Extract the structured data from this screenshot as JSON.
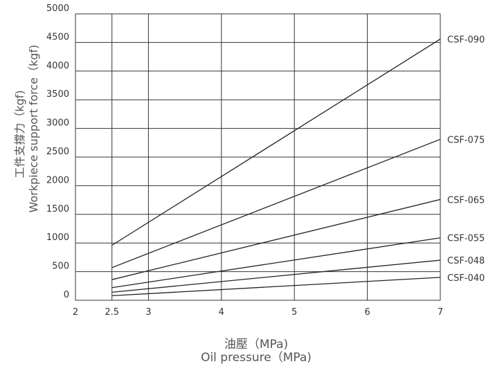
{
  "chart_data": {
    "type": "line",
    "xlabel_lines": [
      "油壓（MPa)",
      "Oil pressure（MPa)"
    ],
    "ylabel_lines": [
      "工件支撐力（kgf)",
      "Workpiece support force（kgf)"
    ],
    "xlim": [
      2,
      7
    ],
    "ylim": [
      0,
      5000
    ],
    "xticks": [
      2,
      2.5,
      3,
      4,
      5,
      6,
      7
    ],
    "xtick_labels": [
      "2",
      "2.5",
      "3",
      "4",
      "5",
      "6",
      "7"
    ],
    "yticks": [
      0,
      500,
      1000,
      1500,
      2000,
      2500,
      3000,
      3500,
      4000,
      4500,
      5000
    ],
    "ytick_labels": [
      "0",
      "500",
      "1000",
      "1500",
      "2000",
      "2500",
      "3000",
      "3500",
      "4000",
      "4500",
      "5000"
    ],
    "grid": true,
    "series": [
      {
        "name": "CSF-090",
        "x": [
          2.5,
          7
        ],
        "values": [
          960,
          4560
        ]
      },
      {
        "name": "CSF-075",
        "x": [
          2.5,
          7
        ],
        "values": [
          570,
          2810
        ]
      },
      {
        "name": "CSF-065",
        "x": [
          2.5,
          7
        ],
        "values": [
          360,
          1760
        ]
      },
      {
        "name": "CSF-055",
        "x": [
          2.5,
          7
        ],
        "values": [
          220,
          1090
        ]
      },
      {
        "name": "CSF-048",
        "x": [
          2.5,
          7
        ],
        "values": [
          140,
          700
        ]
      },
      {
        "name": "CSF-040",
        "x": [
          2.5,
          7
        ],
        "values": [
          80,
          400
        ]
      }
    ]
  }
}
